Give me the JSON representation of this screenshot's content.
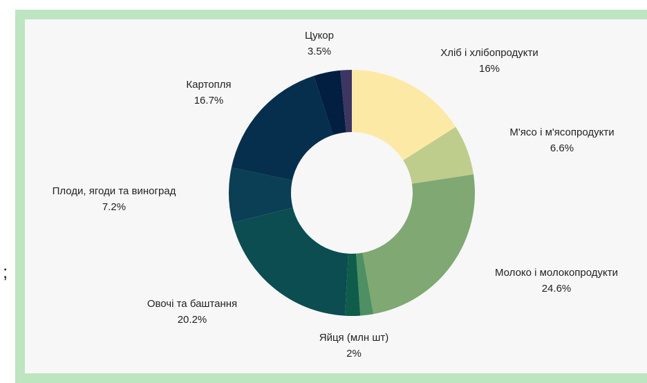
{
  "side_text": ";",
  "chart_data": {
    "type": "donut",
    "categories": [
      "Хліб і хлібопродукти",
      "М'ясо і м'ясопродукти",
      "Молоко і молокопродукти",
      null,
      "Яйця (млн шт)",
      "Овочі та баштання",
      "Плоди, ягоди та виноград",
      "Картопля",
      "Цукор",
      null
    ],
    "values": [
      16,
      6.6,
      24.6,
      1.7,
      2,
      20.2,
      7.2,
      16.7,
      3.5,
      1.5
    ],
    "value_labels": [
      "16%",
      "6.6%",
      "24.6%",
      null,
      "2%",
      "20.2%",
      "7.2%",
      "16.7%",
      "3.5%",
      null
    ],
    "colors": [
      "#fde9a6",
      "#bfcd8c",
      "#7fa873",
      "#4e8f63",
      "#0f5c4a",
      "#0c4d52",
      "#0a3f55",
      "#062f4d",
      "#021e40",
      "#3d3563"
    ]
  }
}
